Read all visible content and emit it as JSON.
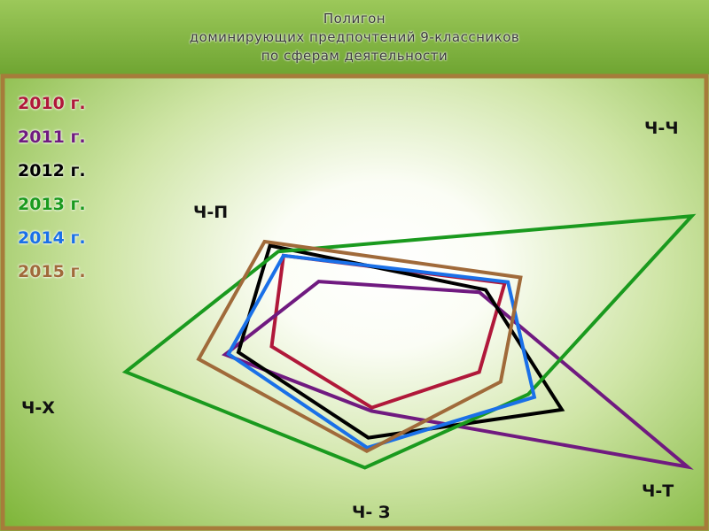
{
  "title": {
    "line1": "Полигон",
    "line2": "доминирующих  предпочтений  9-классников",
    "line3": "по сферам деятельности"
  },
  "colors": {
    "title_bg": "#7dad3b",
    "frame": "#a67c3a",
    "background_center": "#ffffff",
    "background_edge": "#7fb63a"
  },
  "chart_data": {
    "type": "radar",
    "axes": [
      "Ч-П",
      "Ч-Ч",
      "Ч-Т",
      "Ч- З",
      "Ч-Х"
    ],
    "grid": false,
    "legend_position": "top-left",
    "series": [
      {
        "name": "2010 г.",
        "color": "#b0183a",
        "values": [
          0.36,
          0.39,
          0.32,
          0.24,
          0.33
        ]
      },
      {
        "name": "2011 г.",
        "color": "#701a80",
        "values": [
          0.23,
          0.31,
          1.0,
          0.25,
          0.47
        ]
      },
      {
        "name": "2012 г.",
        "color": "#000000",
        "values": [
          0.41,
          0.33,
          0.59,
          0.33,
          0.43
        ]
      },
      {
        "name": "2013 г.",
        "color": "#1a9a1e",
        "values": [
          0.38,
          0.98,
          0.48,
          0.42,
          0.77
        ]
      },
      {
        "name": "2014 г.",
        "color": "#1a70e8",
        "values": [
          0.36,
          0.4,
          0.5,
          0.36,
          0.46
        ]
      },
      {
        "name": "2015 г.",
        "color": "#a06a3a",
        "values": [
          0.43,
          0.44,
          0.39,
          0.37,
          0.55
        ]
      }
    ]
  }
}
